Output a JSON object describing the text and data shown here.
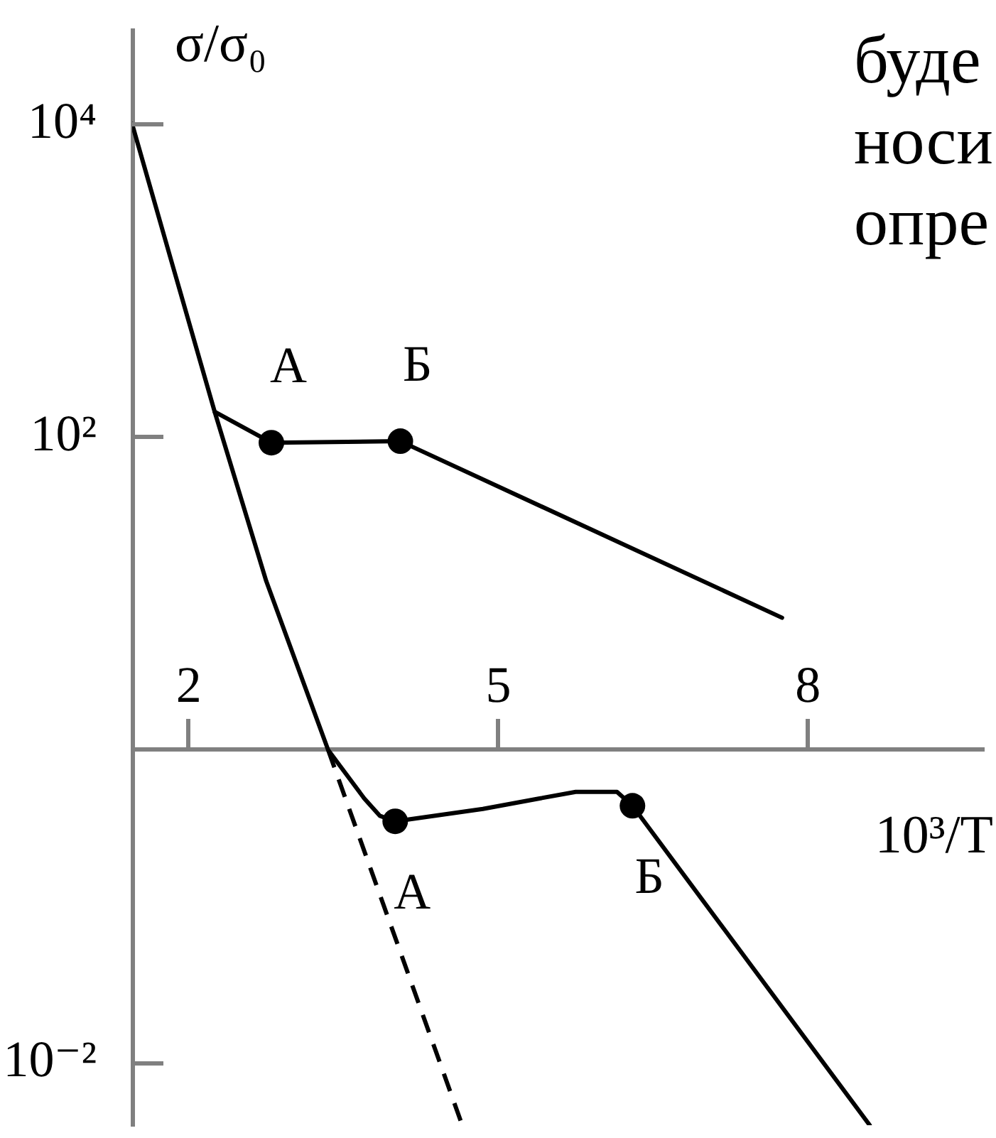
{
  "chart_data": {
    "type": "line",
    "ylabel": "σ/σ₀",
    "xlabel": "10³/T",
    "log": true,
    "grid": false,
    "xlim": [
      1.45,
      9.7
    ],
    "xticks": [
      2,
      5,
      8
    ],
    "ylim": [
      0.004,
      40000
    ],
    "yticks": [
      {
        "value": 10000,
        "label": "10⁴"
      },
      {
        "value": 100,
        "label": "10²"
      },
      {
        "value": 0.01,
        "label": "10⁻²"
      }
    ],
    "series": [
      {
        "color": "#000000",
        "x": [
          1.45,
          1.85,
          2.25,
          2.75,
          3.35,
          3.7,
          3.85,
          4.0,
          4.85,
          5.4,
          5.75,
          6.15,
          6.3,
          8.6
        ],
        "values": [
          10000,
          1200,
          145,
          12,
          1,
          0.49,
          0.38,
          0.35,
          0.42,
          0.49,
          0.54,
          0.54,
          0.44,
          0.004
        ]
      },
      {
        "color": "#000000",
        "x": [
          2.25,
          2.8,
          4.05,
          7.75
        ],
        "values": [
          145,
          92,
          94,
          7
        ]
      },
      {
        "color": "#000000",
        "line_style": "dashed",
        "x": [
          3.35,
          4.65
        ],
        "values": [
          1,
          0.004
        ]
      },
      {
        "type": "scatter",
        "color": "#000000",
        "marker": "circle",
        "x": [
          2.8,
          4.05,
          4.0,
          6.3
        ],
        "values": [
          92,
          94,
          0.35,
          0.44
        ]
      }
    ],
    "annotations": [
      {
        "text": "А",
        "x": 2.8,
        "y": 92
      },
      {
        "text": "Б",
        "x": 4.05,
        "y": 94
      },
      {
        "text": "А",
        "x": 4.0,
        "y": 0.35
      },
      {
        "text": "Б",
        "x": 6.3,
        "y": 0.44
      },
      "буде",
      "носи",
      "опре"
    ]
  }
}
